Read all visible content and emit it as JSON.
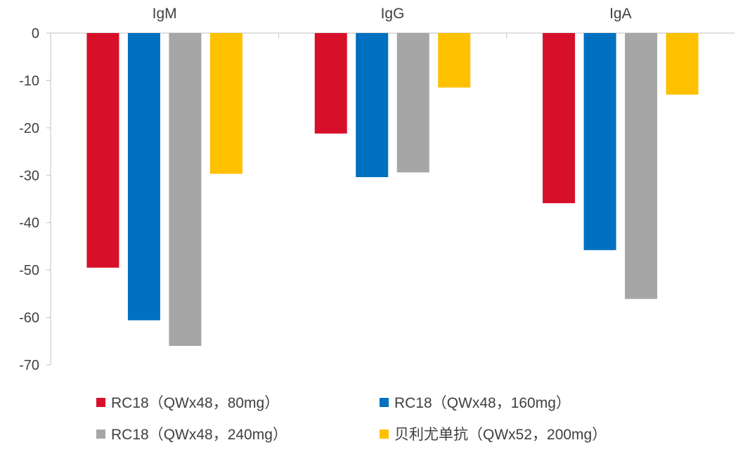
{
  "chart_data": {
    "type": "bar",
    "title": "",
    "xlabel": "",
    "ylabel": "",
    "categories": [
      "IgM",
      "IgG",
      "IgA"
    ],
    "ylim": [
      -70,
      0
    ],
    "yticks": [
      0,
      -10,
      -20,
      -30,
      -40,
      -50,
      -60,
      -70
    ],
    "grid": false,
    "legend_position": "bottom",
    "series": [
      {
        "name": "RC18（QWx48，80mg）",
        "color": "#D7102A",
        "values": [
          -49.5,
          -21.2,
          -35.9
        ]
      },
      {
        "name": "RC18（QWx48，160mg）",
        "color": "#0070C0",
        "values": [
          -60.6,
          -30.4,
          -45.8
        ]
      },
      {
        "name": "RC18（QWx48，240mg）",
        "color": "#A6A6A6",
        "values": [
          -66.0,
          -29.4,
          -56.1
        ]
      },
      {
        "name": "贝利尤单抗（QWx52，200mg）",
        "color": "#FFC000",
        "values": [
          -29.7,
          -11.5,
          -13.0
        ]
      }
    ]
  }
}
